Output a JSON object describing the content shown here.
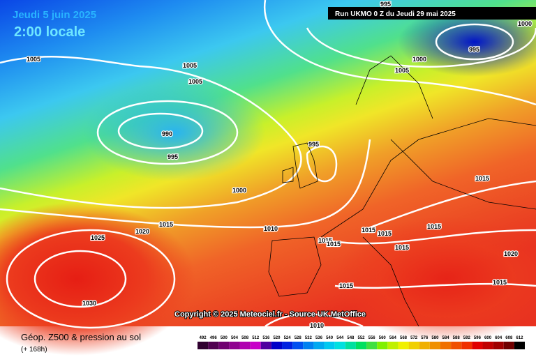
{
  "header": {
    "date": "Jeudi 5 juin 2025",
    "time": "2:00 locale",
    "run": "Run UKMO 0 Z du Jeudi 29 mai 2025"
  },
  "copyright": "Copyright © 2025 Meteociel.fr - Source UK MetOffice",
  "footer": {
    "title": "Géop. Z500 & pression au sol",
    "lead": "(+ 168h)"
  },
  "isobar_labels": [
    1005,
    1005,
    1005,
    990,
    995,
    995,
    1000,
    1010,
    1015,
    1020,
    1025,
    1030,
    1015,
    1015,
    1015,
    1015,
    1015,
    1015,
    1015,
    1015,
    1015,
    1010,
    1020,
    1000,
    1005,
    995,
    995,
    1000
  ],
  "colorbar": {
    "levels": [
      492,
      496,
      500,
      504,
      508,
      512,
      516,
      520,
      524,
      528,
      532,
      536,
      540,
      544,
      548,
      552,
      556,
      560,
      564,
      568,
      572,
      576,
      580,
      584,
      588,
      592,
      596,
      600,
      604,
      608,
      612
    ],
    "colors": [
      "#300030",
      "#500050",
      "#700070",
      "#900090",
      "#b000b0",
      "#c800c8",
      "#5000a0",
      "#0000c8",
      "#0020e0",
      "#0050f0",
      "#0080f0",
      "#00a8f0",
      "#00c8f0",
      "#00e0e0",
      "#00e0a0",
      "#00e060",
      "#40e040",
      "#80f000",
      "#c0f000",
      "#f0f000",
      "#f0d000",
      "#f0b000",
      "#f09000",
      "#f07000",
      "#f05000",
      "#f03000",
      "#e00000",
      "#c00000",
      "#a00000",
      "#700000",
      "#000000"
    ]
  }
}
